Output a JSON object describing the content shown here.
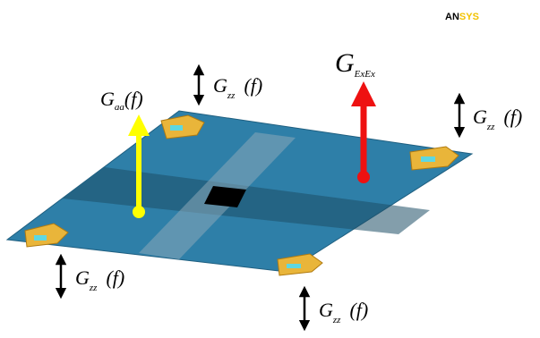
{
  "logo": {
    "dark": "AN",
    "light": "SYS"
  },
  "labels": [
    {
      "main": "G",
      "sub": "aa",
      "arg": "(f)"
    },
    {
      "main": "G",
      "sub": "ExEx"
    },
    {
      "main": "G",
      "sub": "zz",
      "arg": "(f)"
    },
    {
      "main": "G",
      "sub": "zz",
      "arg": "(f)"
    },
    {
      "main": "G",
      "sub": "zz",
      "arg": "(f)"
    },
    {
      "main": "G",
      "sub": "zz",
      "arg": "(f)"
    }
  ]
}
